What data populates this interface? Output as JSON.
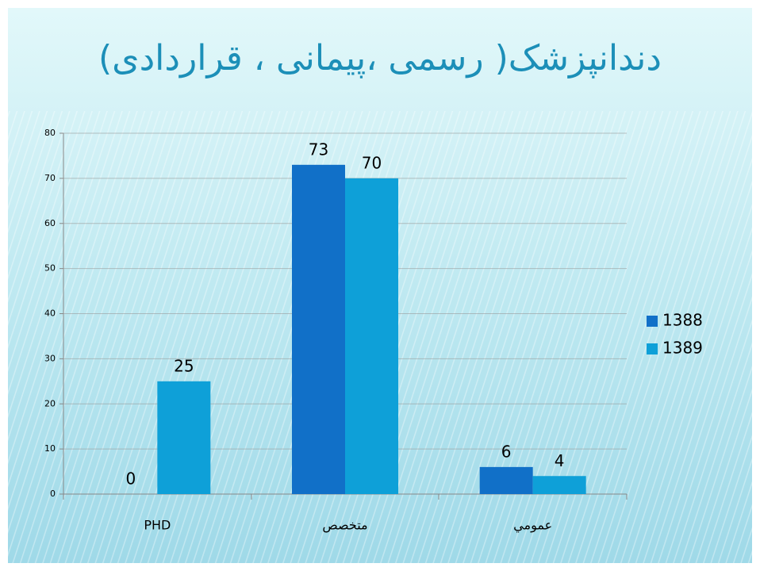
{
  "chart_data": {
    "type": "bar",
    "title": "دندانپزشک( رسمی ،پیمانی ، قراردادی)",
    "categories": [
      "PHD",
      "متخصص",
      "عمومي"
    ],
    "series": [
      {
        "name": "1388",
        "color": "#1170c8",
        "values": [
          0,
          73,
          6
        ]
      },
      {
        "name": "1389",
        "color": "#0ea0d8",
        "values": [
          25,
          70,
          4
        ]
      }
    ],
    "ylim": [
      0,
      80
    ],
    "yticks": [
      0,
      10,
      20,
      30,
      40,
      50,
      60,
      70,
      80
    ],
    "grid": true,
    "legend": "right"
  }
}
